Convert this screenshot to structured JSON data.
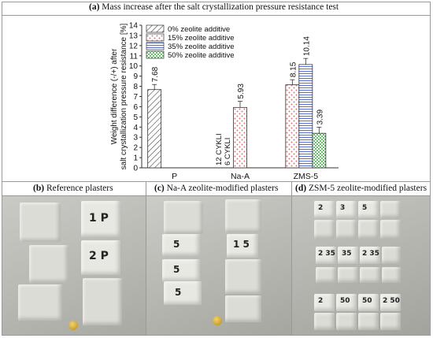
{
  "captions": {
    "a_label": "(a)",
    "a_text": " Mass increase after the salt crystallization pressure resistance test",
    "b_label": "(b)",
    "b_text": " Reference plasters",
    "c_label": "(c)",
    "c_text": " Na-A zeolite-modified plasters",
    "d_label": "(d)",
    "d_text": " ZSM-5 zeolite-modified plasters"
  },
  "colors": {
    "grid_border": "#9a9a9a",
    "bar_edge": "#333333",
    "dots_15": "#d97a7a",
    "stripes_35": "#5a6fd6",
    "check_50": "#6cc26c"
  },
  "chart_data": {
    "type": "bar",
    "ylabel_line1": "Weight difference  (-/+)  after",
    "ylabel_line2": "salt crystallization pressure resistance [%]",
    "ylim": [
      0,
      14
    ],
    "yticks": [
      "0",
      "1",
      "2",
      "3",
      "4",
      "5",
      "6",
      "7",
      "8",
      "9",
      "10",
      "11",
      "12",
      "13",
      "14"
    ],
    "categories": [
      "P",
      "Na-A",
      "ZMS-5"
    ],
    "legend_position": "top-left",
    "series": [
      {
        "name": "0% zeolite additive",
        "pattern": "hatch",
        "values": [
          7.68,
          null,
          null
        ],
        "labels": [
          "7.68",
          "",
          ""
        ],
        "errors": [
          0.5,
          null,
          null
        ]
      },
      {
        "name": "15% zeolite additive",
        "pattern": "dots",
        "values": [
          null,
          5.93,
          8.15
        ],
        "labels": [
          "",
          "5.93",
          "8.15"
        ],
        "errors": [
          null,
          0.6,
          0.5
        ]
      },
      {
        "name": "35% zeolite additive",
        "pattern": "stripes",
        "values": [
          null,
          null,
          10.14
        ],
        "labels": [
          "",
          "",
          "10.14"
        ],
        "errors": [
          null,
          null,
          0.6
        ]
      },
      {
        "name": "50% zeolite additive",
        "pattern": "check",
        "values": [
          null,
          null,
          3.39
        ],
        "labels": [
          "",
          "",
          "3.39"
        ],
        "errors": [
          null,
          null,
          0.6
        ]
      }
    ],
    "annotations": [
      "12 CYKLI",
      "6 CYKLI"
    ]
  },
  "photos": {
    "b": [
      {
        "mark": "1 P"
      },
      {
        "mark": "2 P"
      }
    ],
    "c": [
      {
        "mark": "5"
      },
      {
        "mark": "1 5"
      },
      {
        "mark": "5"
      },
      {
        "mark": "5"
      }
    ],
    "d": [
      {
        "mark": "2"
      },
      {
        "mark": "3"
      },
      {
        "mark": "5"
      },
      {
        "mark": "2 35"
      },
      {
        "mark": "35"
      },
      {
        "mark": "2 35"
      },
      {
        "mark": "2"
      },
      {
        "mark": "50"
      },
      {
        "mark": "50"
      },
      {
        "mark": "2 50"
      }
    ]
  }
}
